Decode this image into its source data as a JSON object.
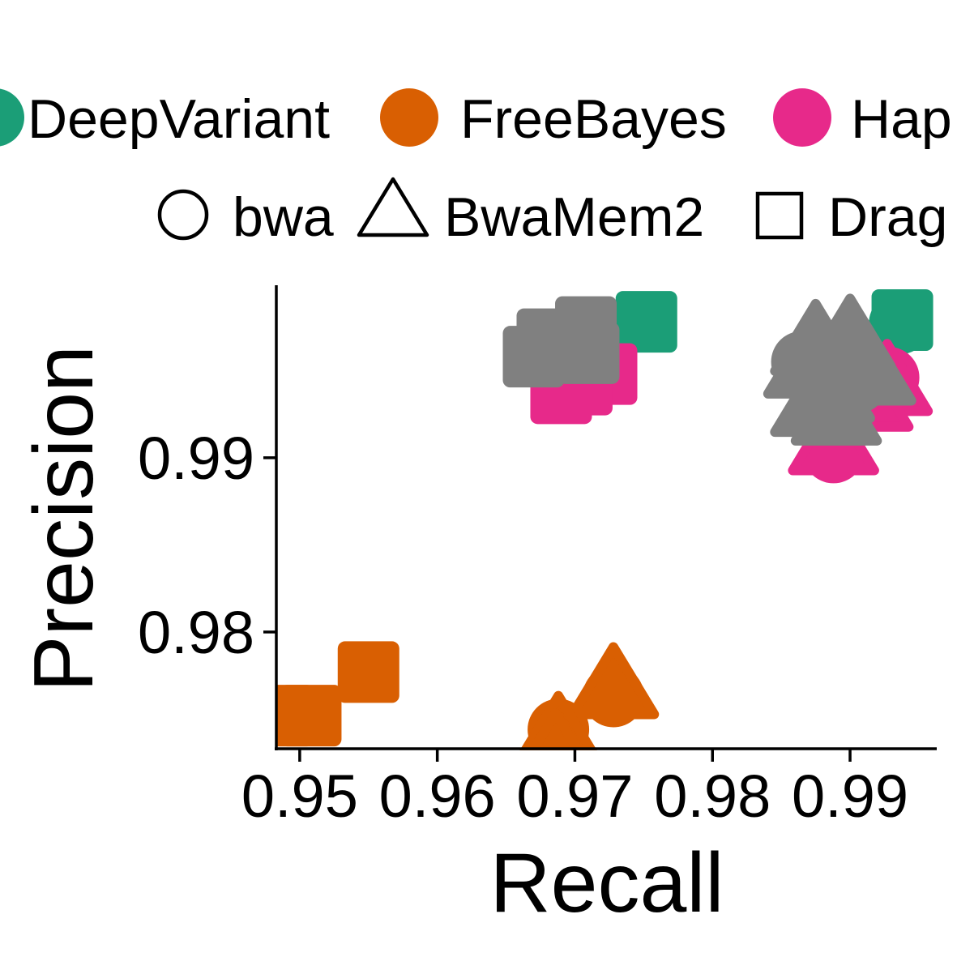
{
  "chart_data": {
    "type": "scatter",
    "xlabel": "Recall",
    "ylabel": "Precision",
    "xlim": [
      0.9483,
      0.9963
    ],
    "ylim": [
      0.9733,
      0.9999
    ],
    "x_ticks": [
      {
        "value": 0.95,
        "label": "0.95"
      },
      {
        "value": 0.96,
        "label": "0.96"
      },
      {
        "value": 0.97,
        "label": "0.97"
      },
      {
        "value": 0.98,
        "label": "0.98"
      },
      {
        "value": 0.99,
        "label": "0.99"
      }
    ],
    "y_ticks": [
      {
        "value": 0.99,
        "label": "0.99"
      },
      {
        "value": 0.98,
        "label": "0.98"
      }
    ],
    "grid": false,
    "legend_position": "top",
    "color_legend": [
      {
        "label": "DeepVariant",
        "color": "#1b9e77"
      },
      {
        "label": "FreeBayes",
        "color": "#d95f02"
      },
      {
        "label": "Hap",
        "color": "#e7298a"
      }
    ],
    "shape_legend": [
      {
        "label": "bwa",
        "shape": "circle"
      },
      {
        "label": "BwaMem2",
        "shape": "triangle"
      },
      {
        "label": "Drag",
        "shape": "square"
      }
    ],
    "series": [
      {
        "name": "DeepVariant",
        "color": "#1b9e77",
        "points": [
          {
            "x": 0.9752,
            "y": 0.9978,
            "shape": "square"
          },
          {
            "x": 0.9936,
            "y": 0.9977,
            "shape": "circle"
          },
          {
            "x": 0.9938,
            "y": 0.9979,
            "shape": "square"
          }
        ]
      },
      {
        "name": "FreeBayes",
        "color": "#d95f02",
        "points": [
          {
            "x": 0.9488,
            "y": 0.9752,
            "shape": "square"
          },
          {
            "x": 0.9508,
            "y": 0.9752,
            "shape": "square"
          },
          {
            "x": 0.955,
            "y": 0.9777,
            "shape": "square"
          },
          {
            "x": 0.9728,
            "y": 0.9763,
            "shape": "circle"
          },
          {
            "x": 0.9728,
            "y": 0.9768,
            "shape": "triangle"
          },
          {
            "x": 0.9688,
            "y": 0.9744,
            "shape": "circle"
          },
          {
            "x": 0.9688,
            "y": 0.974,
            "shape": "triangle"
          },
          {
            "x": 0.9686,
            "y": 0.973,
            "shape": "triangle"
          }
        ]
      },
      {
        "name": "Hap",
        "color": "#e7298a",
        "points": [
          {
            "x": 0.9723,
            "y": 0.9948,
            "shape": "square"
          },
          {
            "x": 0.9705,
            "y": 0.9942,
            "shape": "square"
          },
          {
            "x": 0.969,
            "y": 0.9937,
            "shape": "square"
          },
          {
            "x": 0.9928,
            "y": 0.9946,
            "shape": "circle"
          },
          {
            "x": 0.9927,
            "y": 0.9942,
            "shape": "triangle"
          },
          {
            "x": 0.9913,
            "y": 0.9933,
            "shape": "triangle"
          },
          {
            "x": 0.9888,
            "y": 0.9903,
            "shape": "circle"
          },
          {
            "x": 0.9888,
            "y": 0.9908,
            "shape": "triangle"
          }
        ]
      },
      {
        "name": "",
        "color": "#808080",
        "points": [
          {
            "x": 0.968,
            "y": 0.9968,
            "shape": "square"
          },
          {
            "x": 0.9708,
            "y": 0.9975,
            "shape": "square"
          },
          {
            "x": 0.967,
            "y": 0.9958,
            "shape": "square"
          },
          {
            "x": 0.971,
            "y": 0.996,
            "shape": "square"
          },
          {
            "x": 0.9875,
            "y": 0.9965,
            "shape": "triangle"
          },
          {
            "x": 0.99,
            "y": 0.9968,
            "shape": "triangle"
          },
          {
            "x": 0.9865,
            "y": 0.9955,
            "shape": "circle"
          },
          {
            "x": 0.988,
            "y": 0.995,
            "shape": "circle"
          },
          {
            "x": 0.987,
            "y": 0.9952,
            "shape": "triangle"
          },
          {
            "x": 0.9895,
            "y": 0.9958,
            "shape": "circle"
          },
          {
            "x": 0.9915,
            "y": 0.9948,
            "shape": "triangle"
          },
          {
            "x": 0.9905,
            "y": 0.9943,
            "shape": "circle"
          },
          {
            "x": 0.9885,
            "y": 0.9938,
            "shape": "triangle"
          },
          {
            "x": 0.9875,
            "y": 0.993,
            "shape": "triangle"
          },
          {
            "x": 0.989,
            "y": 0.9925,
            "shape": "triangle"
          }
        ]
      }
    ]
  }
}
